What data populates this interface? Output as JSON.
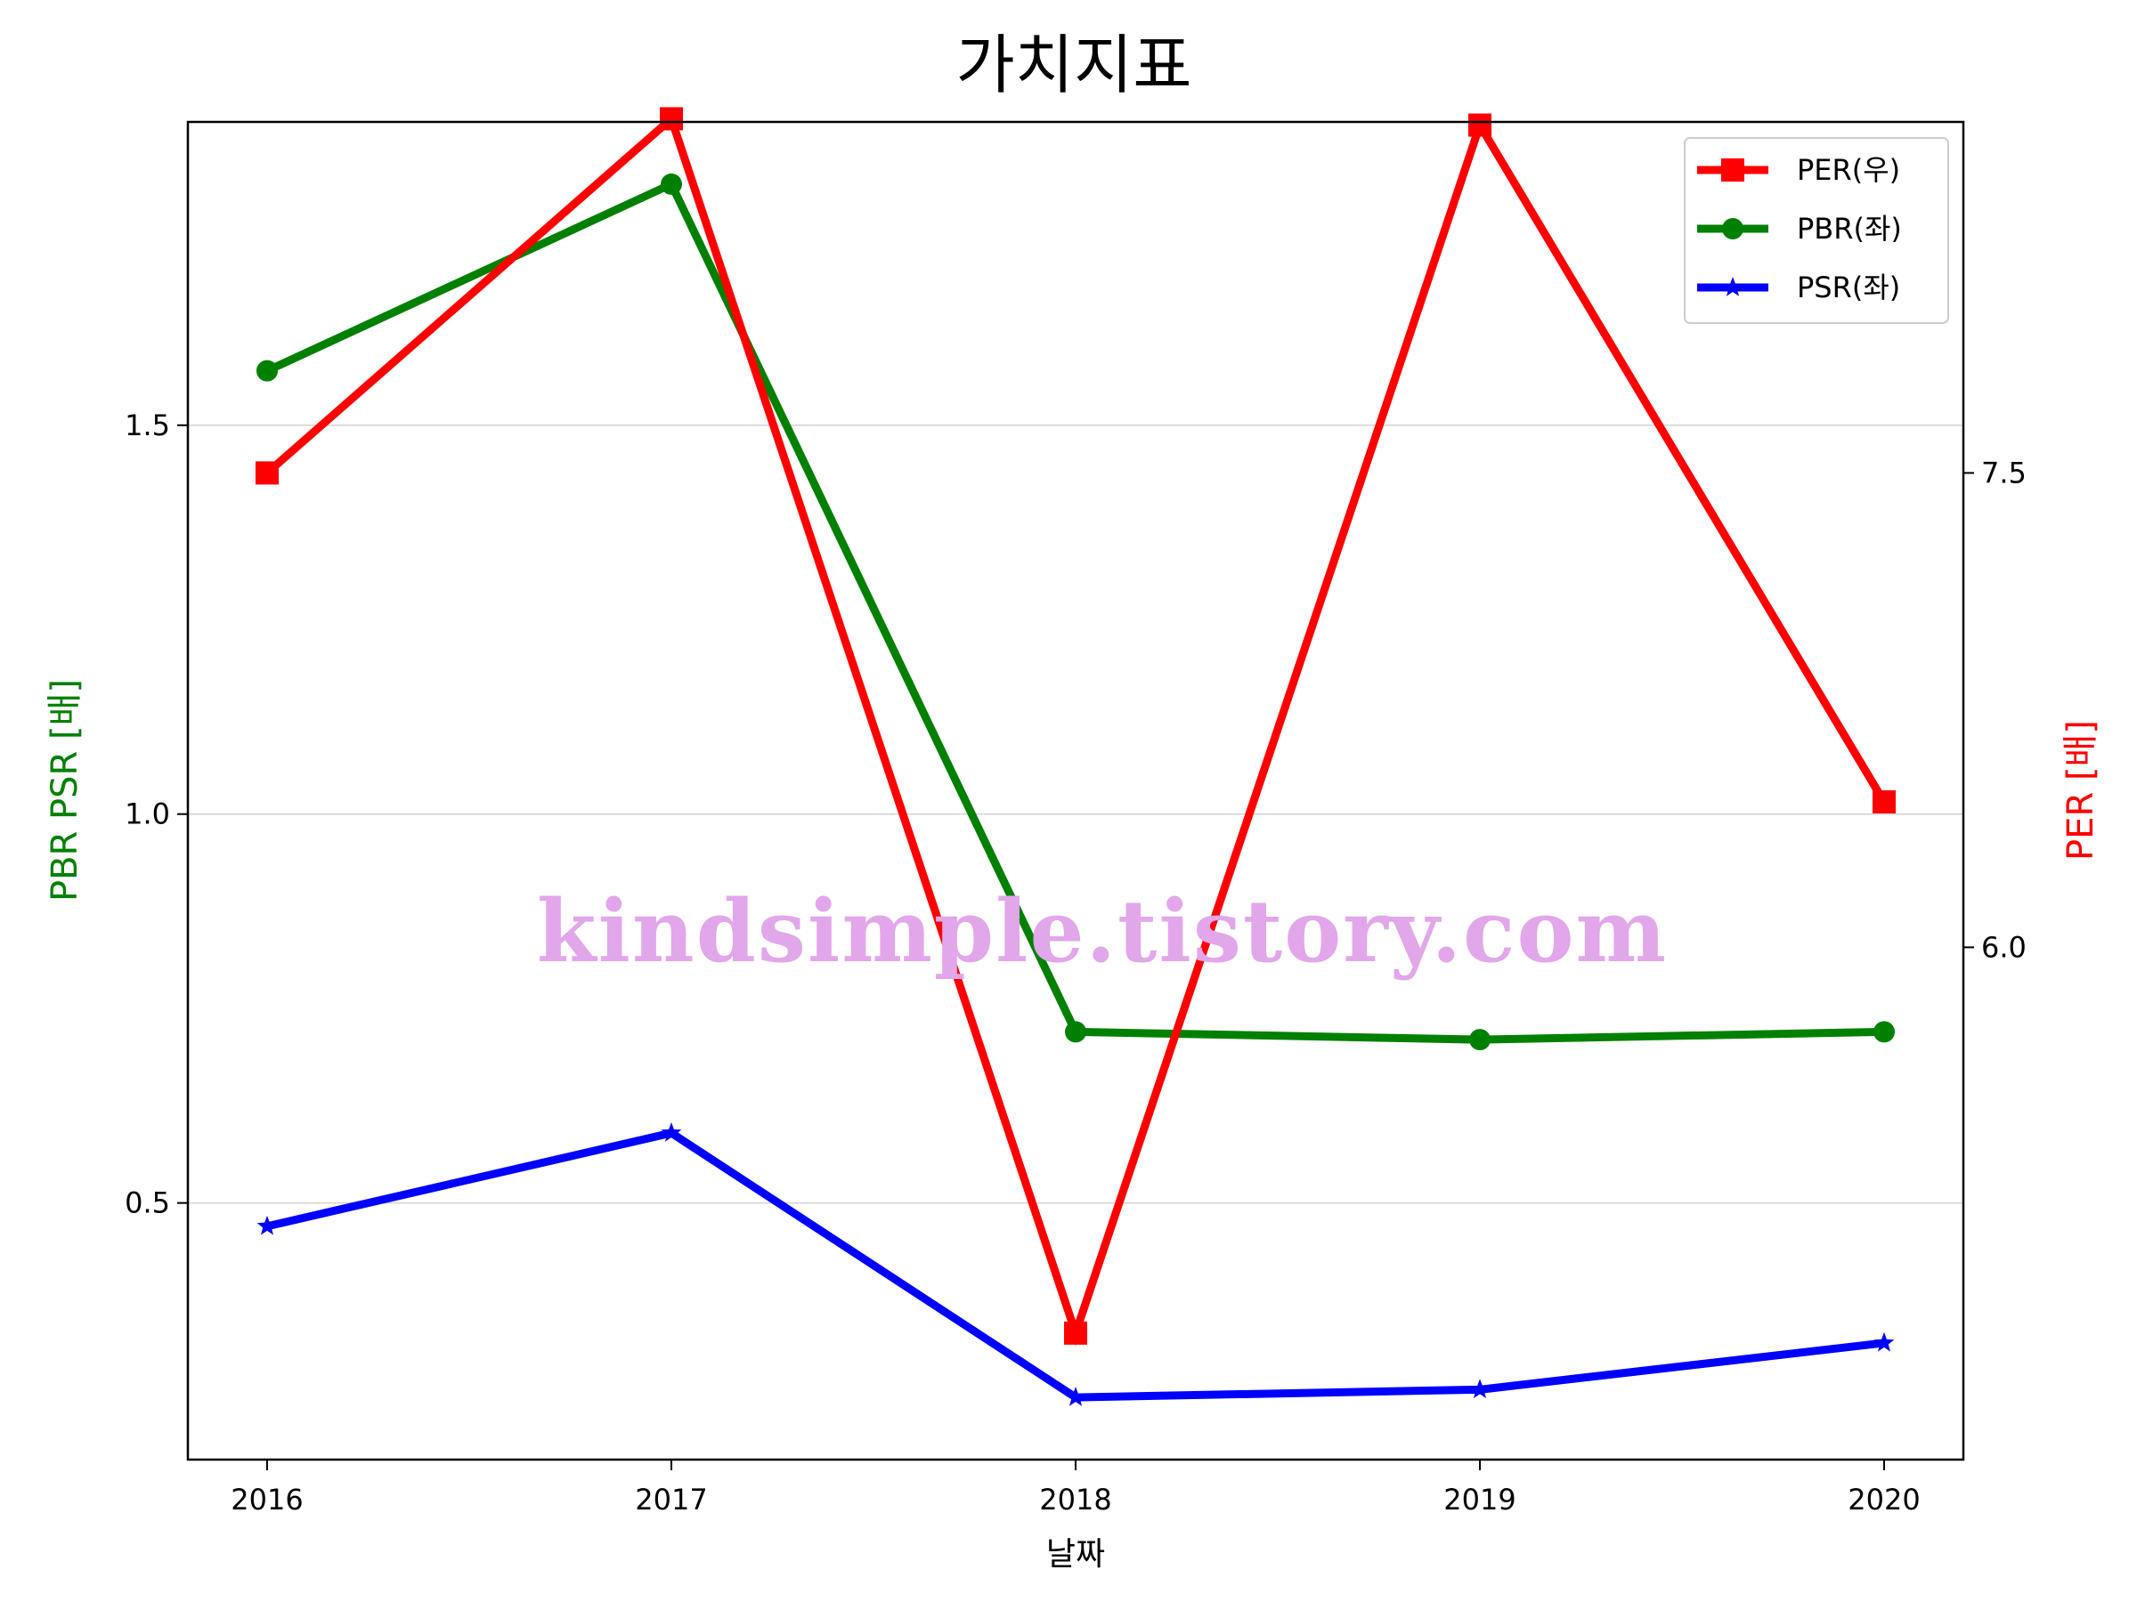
{
  "chart_data": {
    "type": "line",
    "title": "가치지표",
    "xlabel": "날짜",
    "ylabel_left": "PBR PSR [배]",
    "ylabel_right": "PER [배]",
    "categories": [
      "2016",
      "2017",
      "2018",
      "2019",
      "2020"
    ],
    "y_left": {
      "lim": [
        0.17,
        1.89
      ],
      "ticks": [
        0.5,
        1.0,
        1.5
      ],
      "tick_labels": [
        "0.5",
        "1.0",
        "1.5"
      ]
    },
    "y_right": {
      "lim": [
        4.38,
        8.61
      ],
      "ticks": [
        6.0,
        7.5
      ],
      "tick_labels": [
        "6.0",
        "7.5"
      ]
    },
    "grid": "horizontal, left axis",
    "legend_position": "upper right",
    "series": [
      {
        "name": "PER(우)",
        "axis": "right",
        "color": "#ff0000",
        "marker": "square",
        "values": [
          7.5,
          8.62,
          4.78,
          8.6,
          6.46
        ]
      },
      {
        "name": "PBR(좌)",
        "axis": "left",
        "color": "#008000",
        "marker": "circle",
        "values": [
          1.57,
          1.81,
          0.72,
          0.71,
          0.72
        ]
      },
      {
        "name": "PSR(좌)",
        "axis": "left",
        "color": "#0000ff",
        "marker": "star",
        "values": [
          0.47,
          0.59,
          0.25,
          0.26,
          0.32
        ]
      }
    ]
  },
  "watermark": "kindsimple.tistory.com"
}
